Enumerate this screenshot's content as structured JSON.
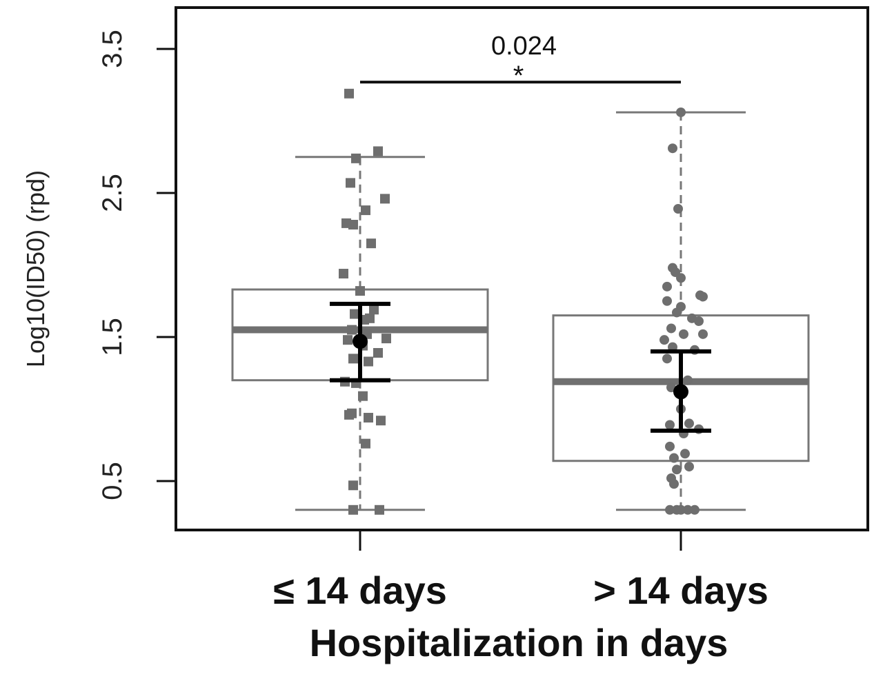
{
  "chart_data": {
    "type": "box",
    "title": "",
    "xlabel": "Hospitalization in days",
    "ylabel": "Log10(ID50) (rpd)",
    "ylim": [
      0.2,
      3.8
    ],
    "yticks": [
      0.5,
      1.5,
      2.5,
      3.5
    ],
    "yticklabels": [
      "0.5",
      "1.5",
      "2.5",
      "3.5"
    ],
    "grid": false,
    "categories": [
      "≤ 14 days",
      "> 14 days"
    ],
    "groups": [
      {
        "category": "≤ 14 days",
        "marker": "square",
        "color": "#6e6e6e",
        "box": {
          "whisker_low": 0.3,
          "q1": 1.2,
          "median": 1.55,
          "q3": 1.83,
          "whisker_high": 2.75
        },
        "mean": 1.47,
        "error_low": 1.2,
        "error_high": 1.73,
        "points": [
          [
            -0.08,
            3.19
          ],
          [
            0.13,
            2.79
          ],
          [
            -0.03,
            2.74
          ],
          [
            -0.07,
            2.57
          ],
          [
            0.04,
            2.38
          ],
          [
            0.18,
            2.46
          ],
          [
            -0.1,
            2.29
          ],
          [
            -0.05,
            2.28
          ],
          [
            0.08,
            2.15
          ],
          [
            -0.12,
            1.94
          ],
          [
            0.0,
            1.82
          ],
          [
            -0.04,
            1.66
          ],
          [
            0.03,
            1.62
          ],
          [
            0.07,
            1.63
          ],
          [
            0.1,
            1.69
          ],
          [
            -0.06,
            1.55
          ],
          [
            0.05,
            1.52
          ],
          [
            -0.09,
            1.48
          ],
          [
            0.02,
            1.44
          ],
          [
            0.13,
            1.39
          ],
          [
            0.19,
            1.49
          ],
          [
            -0.05,
            1.35
          ],
          [
            0.06,
            1.33
          ],
          [
            -0.11,
            1.19
          ],
          [
            -0.03,
            1.18
          ],
          [
            0.02,
            1.09
          ],
          [
            -0.06,
            0.97
          ],
          [
            -0.08,
            0.96
          ],
          [
            0.06,
            0.94
          ],
          [
            0.15,
            0.92
          ],
          [
            0.04,
            0.76
          ],
          [
            -0.05,
            0.47
          ],
          [
            -0.05,
            0.3
          ],
          [
            0.14,
            0.3
          ]
        ]
      },
      {
        "category": "> 14 days",
        "marker": "circle",
        "color": "#6e6e6e",
        "box": {
          "whisker_low": 0.3,
          "q1": 0.64,
          "median": 1.19,
          "q3": 1.65,
          "whisker_high": 3.06
        },
        "mean": 1.12,
        "error_low": 0.85,
        "error_high": 1.4,
        "points": [
          [
            0.0,
            3.06
          ],
          [
            -0.06,
            2.81
          ],
          [
            -0.02,
            2.39
          ],
          [
            -0.06,
            1.98
          ],
          [
            -0.04,
            1.95
          ],
          [
            0.0,
            1.91
          ],
          [
            -0.1,
            1.85
          ],
          [
            0.14,
            1.79
          ],
          [
            0.16,
            1.78
          ],
          [
            -0.1,
            1.75
          ],
          [
            0.0,
            1.71
          ],
          [
            -0.03,
            1.67
          ],
          [
            0.08,
            1.63
          ],
          [
            0.13,
            1.61
          ],
          [
            -0.07,
            1.56
          ],
          [
            0.02,
            1.52
          ],
          [
            0.16,
            1.52
          ],
          [
            -0.12,
            1.48
          ],
          [
            -0.06,
            1.43
          ],
          [
            0.1,
            1.41
          ],
          [
            -0.1,
            1.35
          ],
          [
            0.05,
            1.2
          ],
          [
            -0.07,
            1.15
          ],
          [
            0.0,
            1.0
          ],
          [
            -0.08,
            0.89
          ],
          [
            0.06,
            0.9
          ],
          [
            0.13,
            0.86
          ],
          [
            0.02,
            0.83
          ],
          [
            -0.08,
            0.74
          ],
          [
            -0.05,
            0.66
          ],
          [
            0.03,
            0.69
          ],
          [
            0.06,
            0.6
          ],
          [
            -0.03,
            0.58
          ],
          [
            -0.07,
            0.52
          ],
          [
            -0.05,
            0.48
          ],
          [
            -0.08,
            0.3
          ],
          [
            -0.03,
            0.3
          ],
          [
            0.0,
            0.3
          ],
          [
            0.05,
            0.3
          ],
          [
            0.1,
            0.3
          ]
        ]
      }
    ],
    "annotations": [
      {
        "type": "significance",
        "from": "≤ 14 days",
        "to": "> 14 days",
        "y": 3.27,
        "text": "0.024",
        "marker": "*"
      }
    ]
  }
}
